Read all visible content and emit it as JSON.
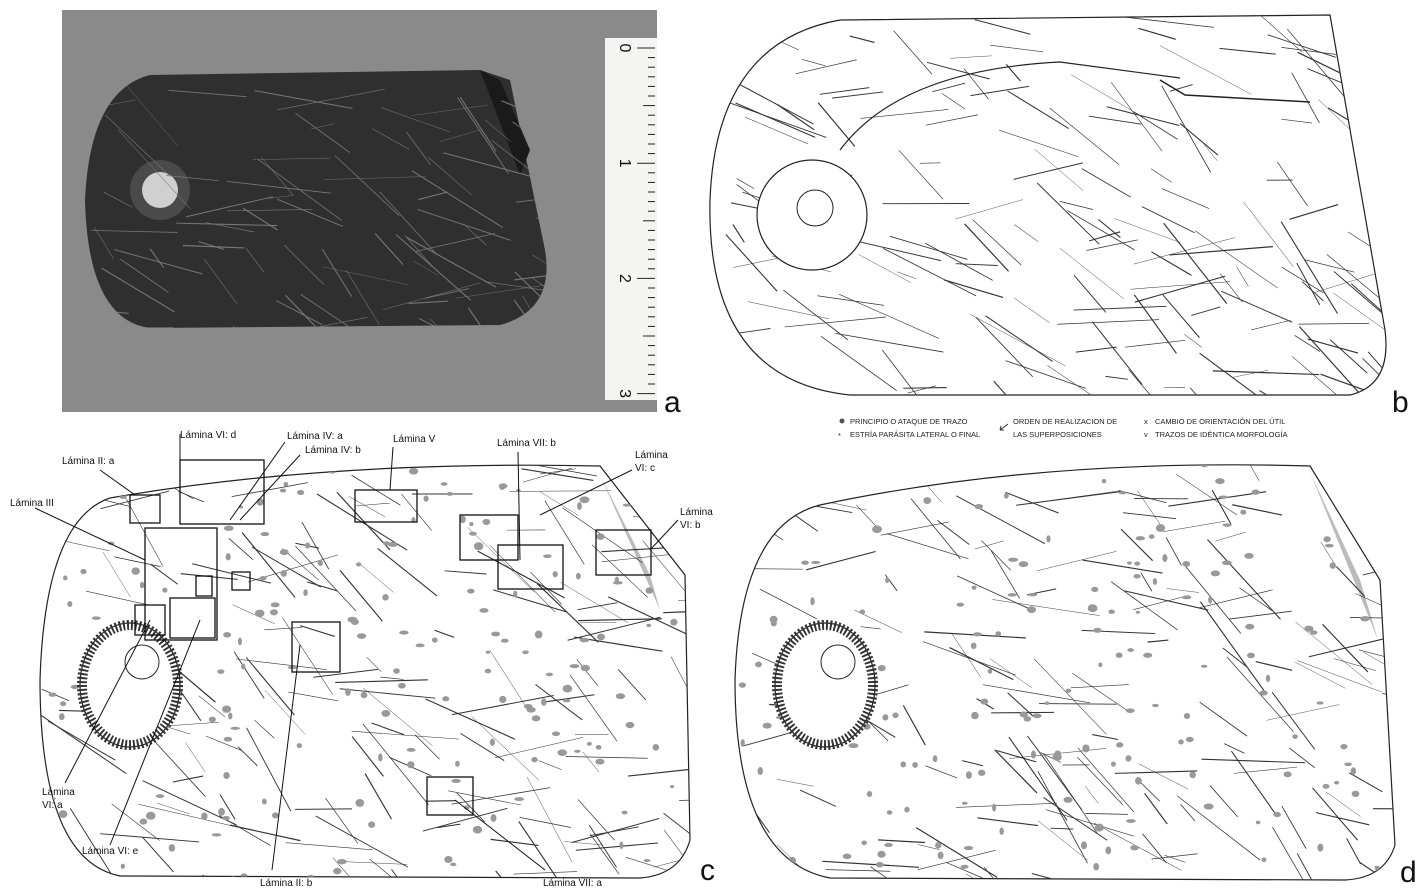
{
  "panels": {
    "a": {
      "letter": "a",
      "ruler": [
        "0",
        "1",
        "2",
        "3"
      ]
    },
    "b": {
      "letter": "b",
      "legend": [
        "PRINCIPIO O ATAQUE DE TRAZO",
        "ESTRÍA PARÁSITA LATERAL O FINAL",
        "ORDEN DE REALIZACION DE",
        "LAS SUPERPOSICIONES",
        "CAMBIO DE ORIENTACIÓN DEL ÚTIL",
        "TRAZOS DE IDÉNTICA MORFOLOGÍA"
      ]
    },
    "c": {
      "letter": "c",
      "labels": [
        [
          "Lámina VI: d"
        ],
        [
          "Lámina IV: a"
        ],
        [
          "Lámina IV: b"
        ],
        [
          "Lámina V"
        ],
        [
          "Lámina VII: b"
        ],
        [
          "Lámina",
          "VI: c"
        ],
        [
          "Lámina II: a"
        ],
        [
          "Lámina III"
        ],
        [
          "Lámina",
          "VI: b"
        ],
        [
          "Lámina",
          "VI: a"
        ],
        [
          "Lámina VI: e"
        ],
        [
          "Lámina II: b"
        ],
        [
          "Lámina VII: a"
        ]
      ]
    },
    "d": {
      "letter": "d"
    }
  }
}
